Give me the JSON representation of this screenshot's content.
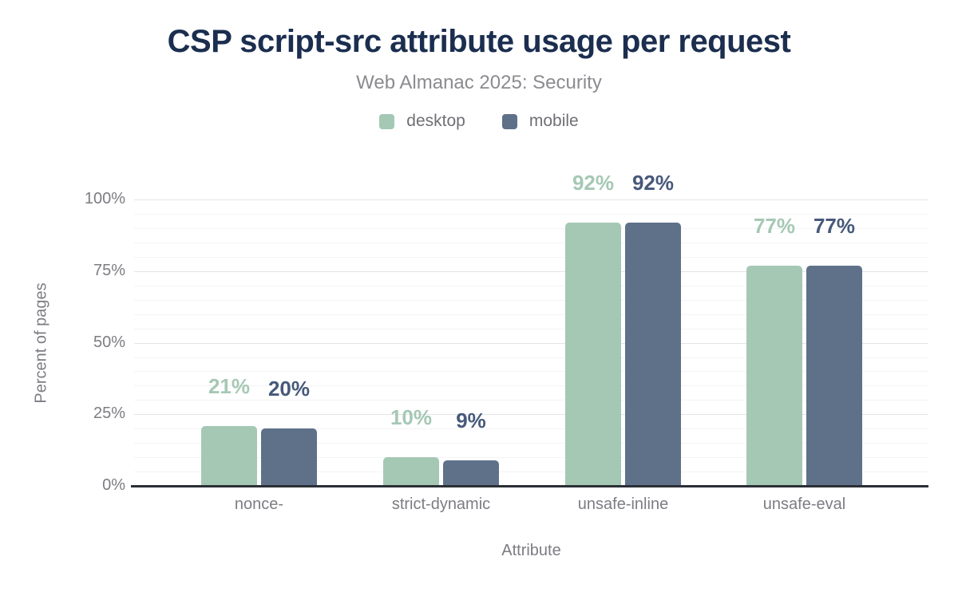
{
  "chart_data": {
    "type": "bar",
    "title": "CSP script-src attribute usage per request",
    "subtitle": "Web Almanac 2025: Security",
    "xlabel": "Attribute",
    "ylabel": "Percent of pages",
    "categories": [
      "nonce-",
      "strict-dynamic",
      "unsafe-inline",
      "unsafe-eval"
    ],
    "series": [
      {
        "name": "desktop",
        "color": "#a5c8b4",
        "label_color": "#a5c8b4",
        "values": [
          21,
          10,
          92,
          77
        ]
      },
      {
        "name": "mobile",
        "color": "#5f7189",
        "label_color": "#47597a",
        "values": [
          20,
          9,
          92,
          77
        ]
      }
    ],
    "ylim": [
      0,
      100
    ],
    "yticks": [
      {
        "value": 0,
        "label": "0%"
      },
      {
        "value": 25,
        "label": "25%"
      },
      {
        "value": 50,
        "label": "50%"
      },
      {
        "value": 75,
        "label": "75%"
      },
      {
        "value": 100,
        "label": "100%"
      }
    ],
    "minor_tick_step": 5,
    "grid": true,
    "legend_position": "top",
    "data_label_format": "{value}%"
  },
  "style": {
    "title_color": "#1b2e4f",
    "subtitle_color": "#8b8b90",
    "axis_text_color": "#7c7c83",
    "major_grid_color": "#e4e4e6",
    "minor_grid_color": "#f4f4f6",
    "axis_line_color": "#2b2f36",
    "background_color": "#ffffff"
  }
}
